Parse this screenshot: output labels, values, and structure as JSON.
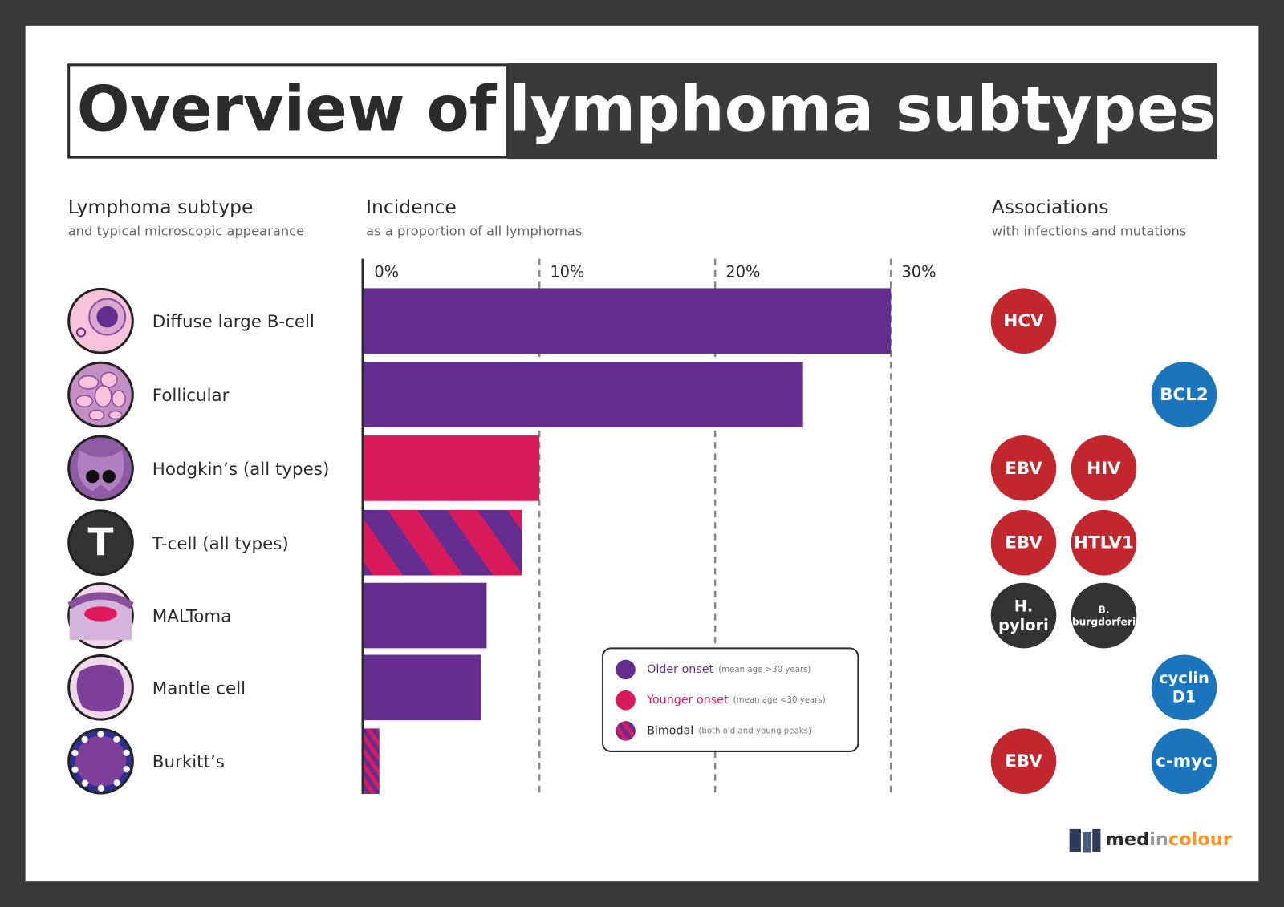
{
  "chart_data": {
    "type": "bar",
    "orientation": "horizontal",
    "title": [
      "Overview of",
      "lymphoma subtypes"
    ],
    "column_headers": [
      {
        "title": "Lymphoma subtype",
        "subtitle": "and typical microscopic appearance"
      },
      {
        "title": "Incidence",
        "subtitle": "as a proportion of all lymphomas"
      },
      {
        "title": "Associations",
        "subtitle": "with infections and mutations"
      }
    ],
    "categories": [
      "Diffuse large B-cell",
      "Follicular",
      "Hodgkin’s (all types)",
      "T-cell (all types)",
      "MALToma",
      "Mantle cell",
      "Burkitt’s"
    ],
    "values": [
      30,
      25,
      10,
      9,
      7,
      6.7,
      0.9
    ],
    "bar_colors": [
      "#662d91",
      "#662d91",
      "#d91b5c",
      "stripes",
      "#662d91",
      "#662d91",
      "stripes"
    ],
    "xlim": [
      0,
      30
    ],
    "xticks": [
      {
        "value": 0,
        "label": "0%"
      },
      {
        "value": 10,
        "label": "10%"
      },
      {
        "value": 20,
        "label": "20%"
      },
      {
        "value": 30,
        "label": "30%"
      }
    ],
    "grid": true,
    "icon_letter": "T",
    "legend": [
      {
        "name": "Older onset",
        "note": "(mean age >30 years)",
        "color": "#662d91"
      },
      {
        "name": "Younger onset",
        "note": "(mean age <30 years)",
        "color": "#d91b5c"
      },
      {
        "name": "Bimodal",
        "note": "(both old and young peaks)",
        "color": "stripes"
      }
    ],
    "associations": [
      [
        {
          "lines": [
            "HCV"
          ],
          "color": "#c1272d"
        },
        null,
        null
      ],
      [
        null,
        null,
        {
          "lines": [
            "BCL2"
          ],
          "color": "#1b75bc"
        }
      ],
      [
        {
          "lines": [
            "EBV"
          ],
          "color": "#c1272d"
        },
        {
          "lines": [
            "HIV"
          ],
          "color": "#c1272d"
        },
        null
      ],
      [
        {
          "lines": [
            "EBV"
          ],
          "color": "#c1272d"
        },
        {
          "lines": [
            "HTLV1"
          ],
          "color": "#c1272d"
        },
        null
      ],
      [
        {
          "lines": [
            "H.",
            "pylori"
          ],
          "color": "#333333"
        },
        {
          "lines": [
            "B.",
            "burgdorferi"
          ],
          "color": "#333333"
        },
        null
      ],
      [
        null,
        null,
        {
          "lines": [
            "cyclin",
            "D1"
          ],
          "color": "#1b75bc"
        }
      ],
      [
        {
          "lines": [
            "EBV"
          ],
          "color": "#c1272d"
        },
        null,
        {
          "lines": [
            "c-myc"
          ],
          "color": "#1b75bc"
        }
      ]
    ],
    "logo": [
      "med",
      "in",
      "colour"
    ]
  }
}
